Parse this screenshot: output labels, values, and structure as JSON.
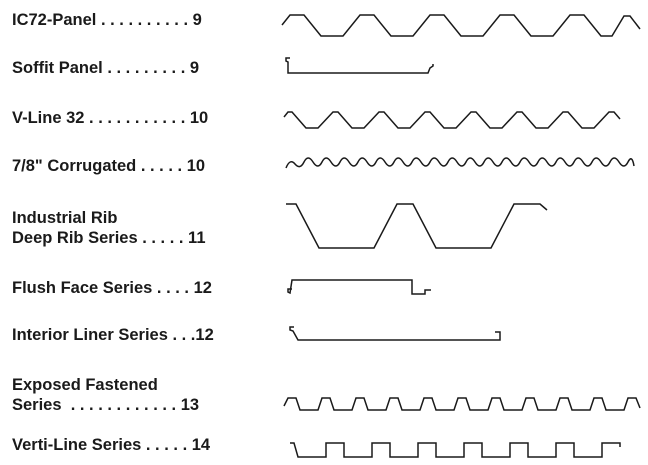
{
  "catalog": {
    "rows": [
      {
        "id": "ic72",
        "text": "IC72-Panel . . . . . . . . . . 9",
        "profile_icon": "trapezoid-wave-icon"
      },
      {
        "id": "soffit",
        "text": "Soffit Panel . . . . . . . . . 9",
        "profile_icon": "flat-pan-icon"
      },
      {
        "id": "vline",
        "text": "V-Line 32 . . . . . . . . . . . 10",
        "profile_icon": "v-wave-icon"
      },
      {
        "id": "corrugated",
        "text": "7/8\" Corrugated . . . . . 10",
        "profile_icon": "sine-wave-icon"
      },
      {
        "id": "industrial",
        "text": "Industrial Rib\nDeep Rib Series . . . . . 11",
        "profile_icon": "deep-rib-icon"
      },
      {
        "id": "flush",
        "text": "Flush Face Series . . . . 12",
        "profile_icon": "flush-pan-icon"
      },
      {
        "id": "liner",
        "text": "Interior Liner Series . . .12",
        "profile_icon": "liner-pan-icon"
      },
      {
        "id": "exposed",
        "text": "Exposed Fastened\nSeries  . . . . . . . . . . . . 13",
        "profile_icon": "small-rib-wave-icon"
      },
      {
        "id": "vertiline",
        "text": "Verti-Line Series . . . . . 14",
        "profile_icon": "square-wave-icon"
      }
    ]
  }
}
